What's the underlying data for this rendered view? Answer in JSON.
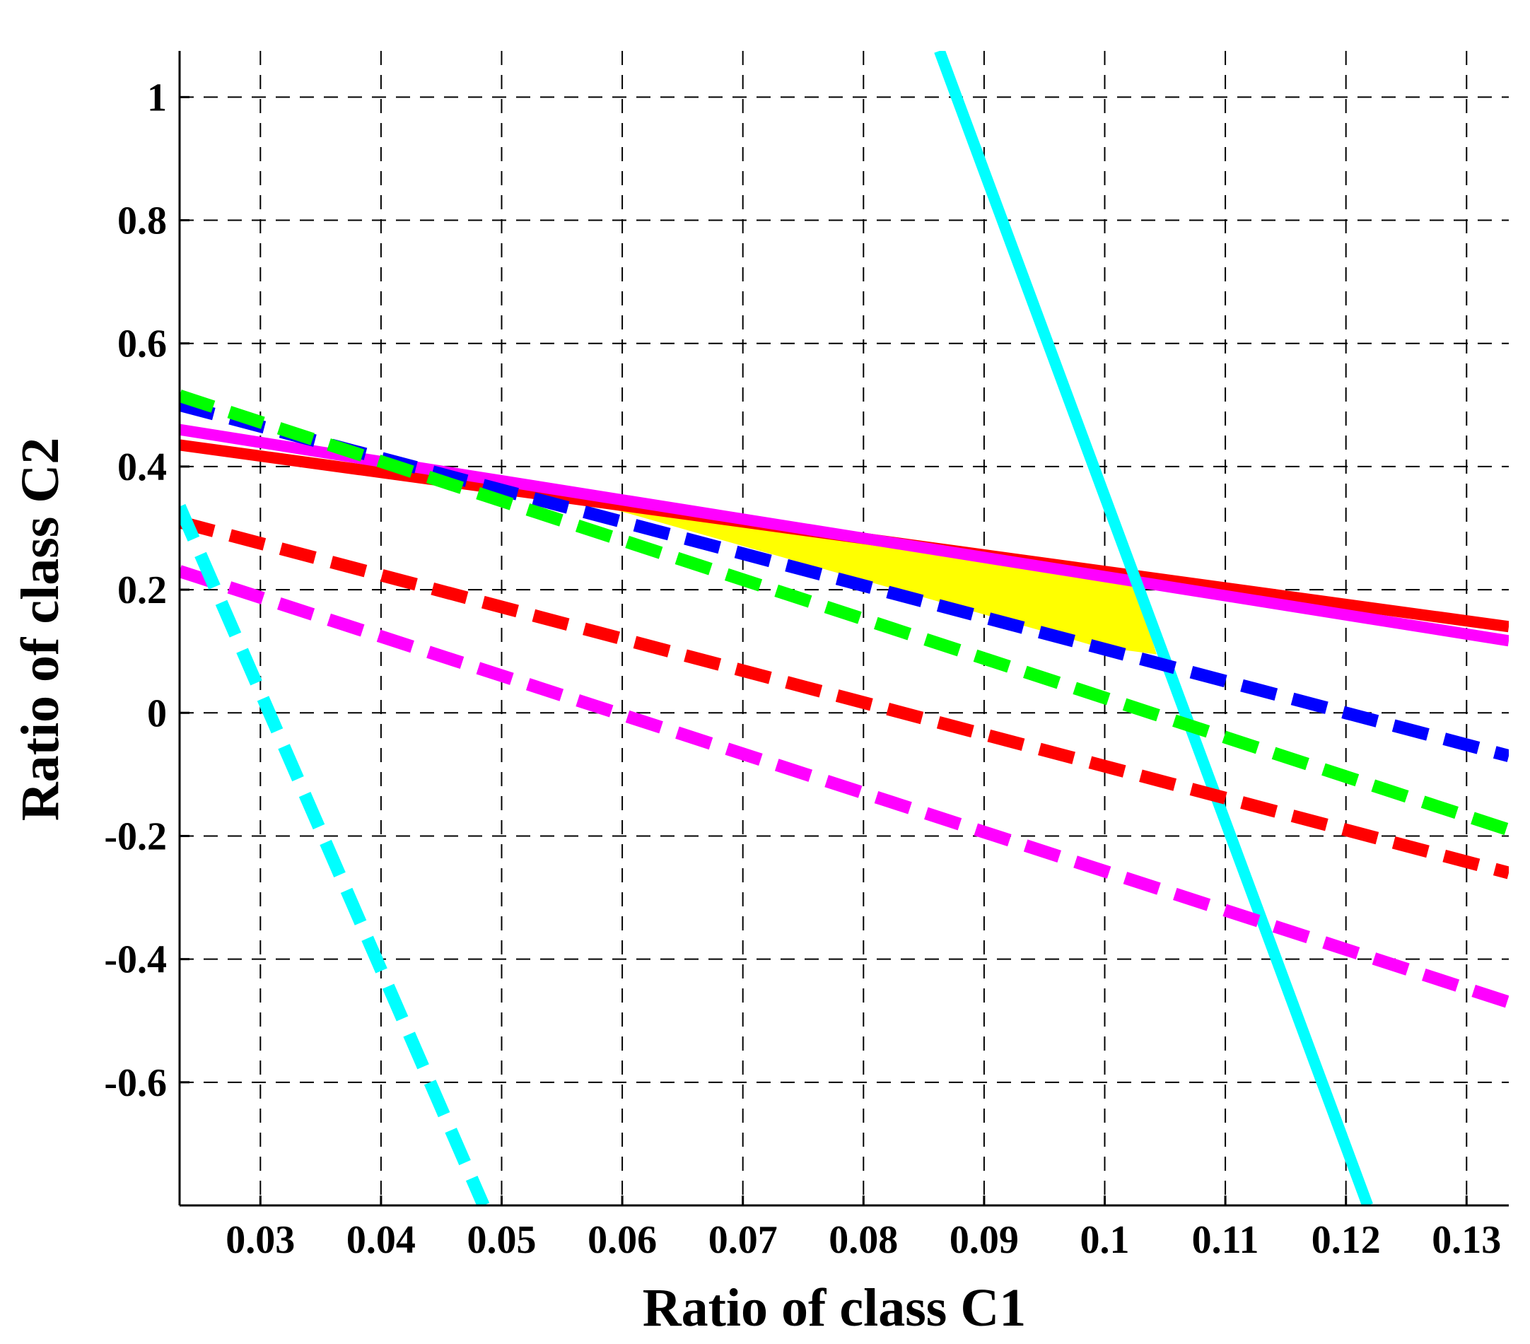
{
  "chart_data": {
    "type": "line",
    "title": "",
    "xlabel": "Ratio of class C1",
    "ylabel": "Ratio of class C2",
    "xlim": [
      0.0233,
      0.1335
    ],
    "ylim": [
      -0.8,
      1.075
    ],
    "xticks": [
      0.03,
      0.04,
      0.05,
      0.06,
      0.07,
      0.08,
      0.09,
      0.1,
      0.11,
      0.12,
      0.13
    ],
    "xtick_labels": [
      "0.03",
      "0.04",
      "0.05",
      "0.06",
      "0.07",
      "0.08",
      "0.09",
      "0.1",
      "0.11",
      "0.12",
      "0.13"
    ],
    "yticks": [
      1,
      0.8,
      0.6,
      0.4,
      0.2,
      0,
      -0.2,
      -0.4,
      -0.6
    ],
    "ytick_labels": [
      "1",
      "0.8",
      "0.6",
      "0.4",
      "0.2",
      "0",
      "-0.2",
      "-0.4",
      "-0.6"
    ],
    "grid": true,
    "legend": "none",
    "feasible_region": {
      "color": "#ffff00",
      "x": [
        0.0567,
        0.1023,
        0.1043,
        0.0993
      ],
      "y": [
        0.345,
        0.22,
        0.095,
        0.108
      ]
    },
    "series": [
      {
        "color": "#ff0000",
        "style": "solid",
        "x": [
          0.0233,
          0.1335
        ],
        "y": [
          0.435,
          0.14
        ]
      },
      {
        "color": "#ff00ff",
        "style": "solid",
        "x": [
          0.0233,
          0.1335
        ],
        "y": [
          0.46,
          0.117
        ]
      },
      {
        "color": "#00ffff",
        "style": "solid",
        "x": [
          0.0863,
          0.1218
        ],
        "y": [
          1.075,
          -0.8
        ]
      },
      {
        "color": "#0000ff",
        "style": "dashed",
        "x": [
          0.0233,
          0.1335
        ],
        "y": [
          0.5,
          -0.07
        ]
      },
      {
        "color": "#00ff00",
        "style": "dashed",
        "x": [
          0.0233,
          0.1335
        ],
        "y": [
          0.515,
          -0.19
        ]
      },
      {
        "color": "#ff0000",
        "style": "dashed",
        "x": [
          0.0233,
          0.1335
        ],
        "y": [
          0.31,
          -0.26
        ]
      },
      {
        "color": "#ff00ff",
        "style": "dashed",
        "x": [
          0.0233,
          0.1335
        ],
        "y": [
          0.23,
          -0.47
        ]
      },
      {
        "color": "#00ffff",
        "style": "dashed",
        "x": [
          0.0233,
          0.0485
        ],
        "y": [
          0.335,
          -0.8
        ]
      }
    ]
  }
}
